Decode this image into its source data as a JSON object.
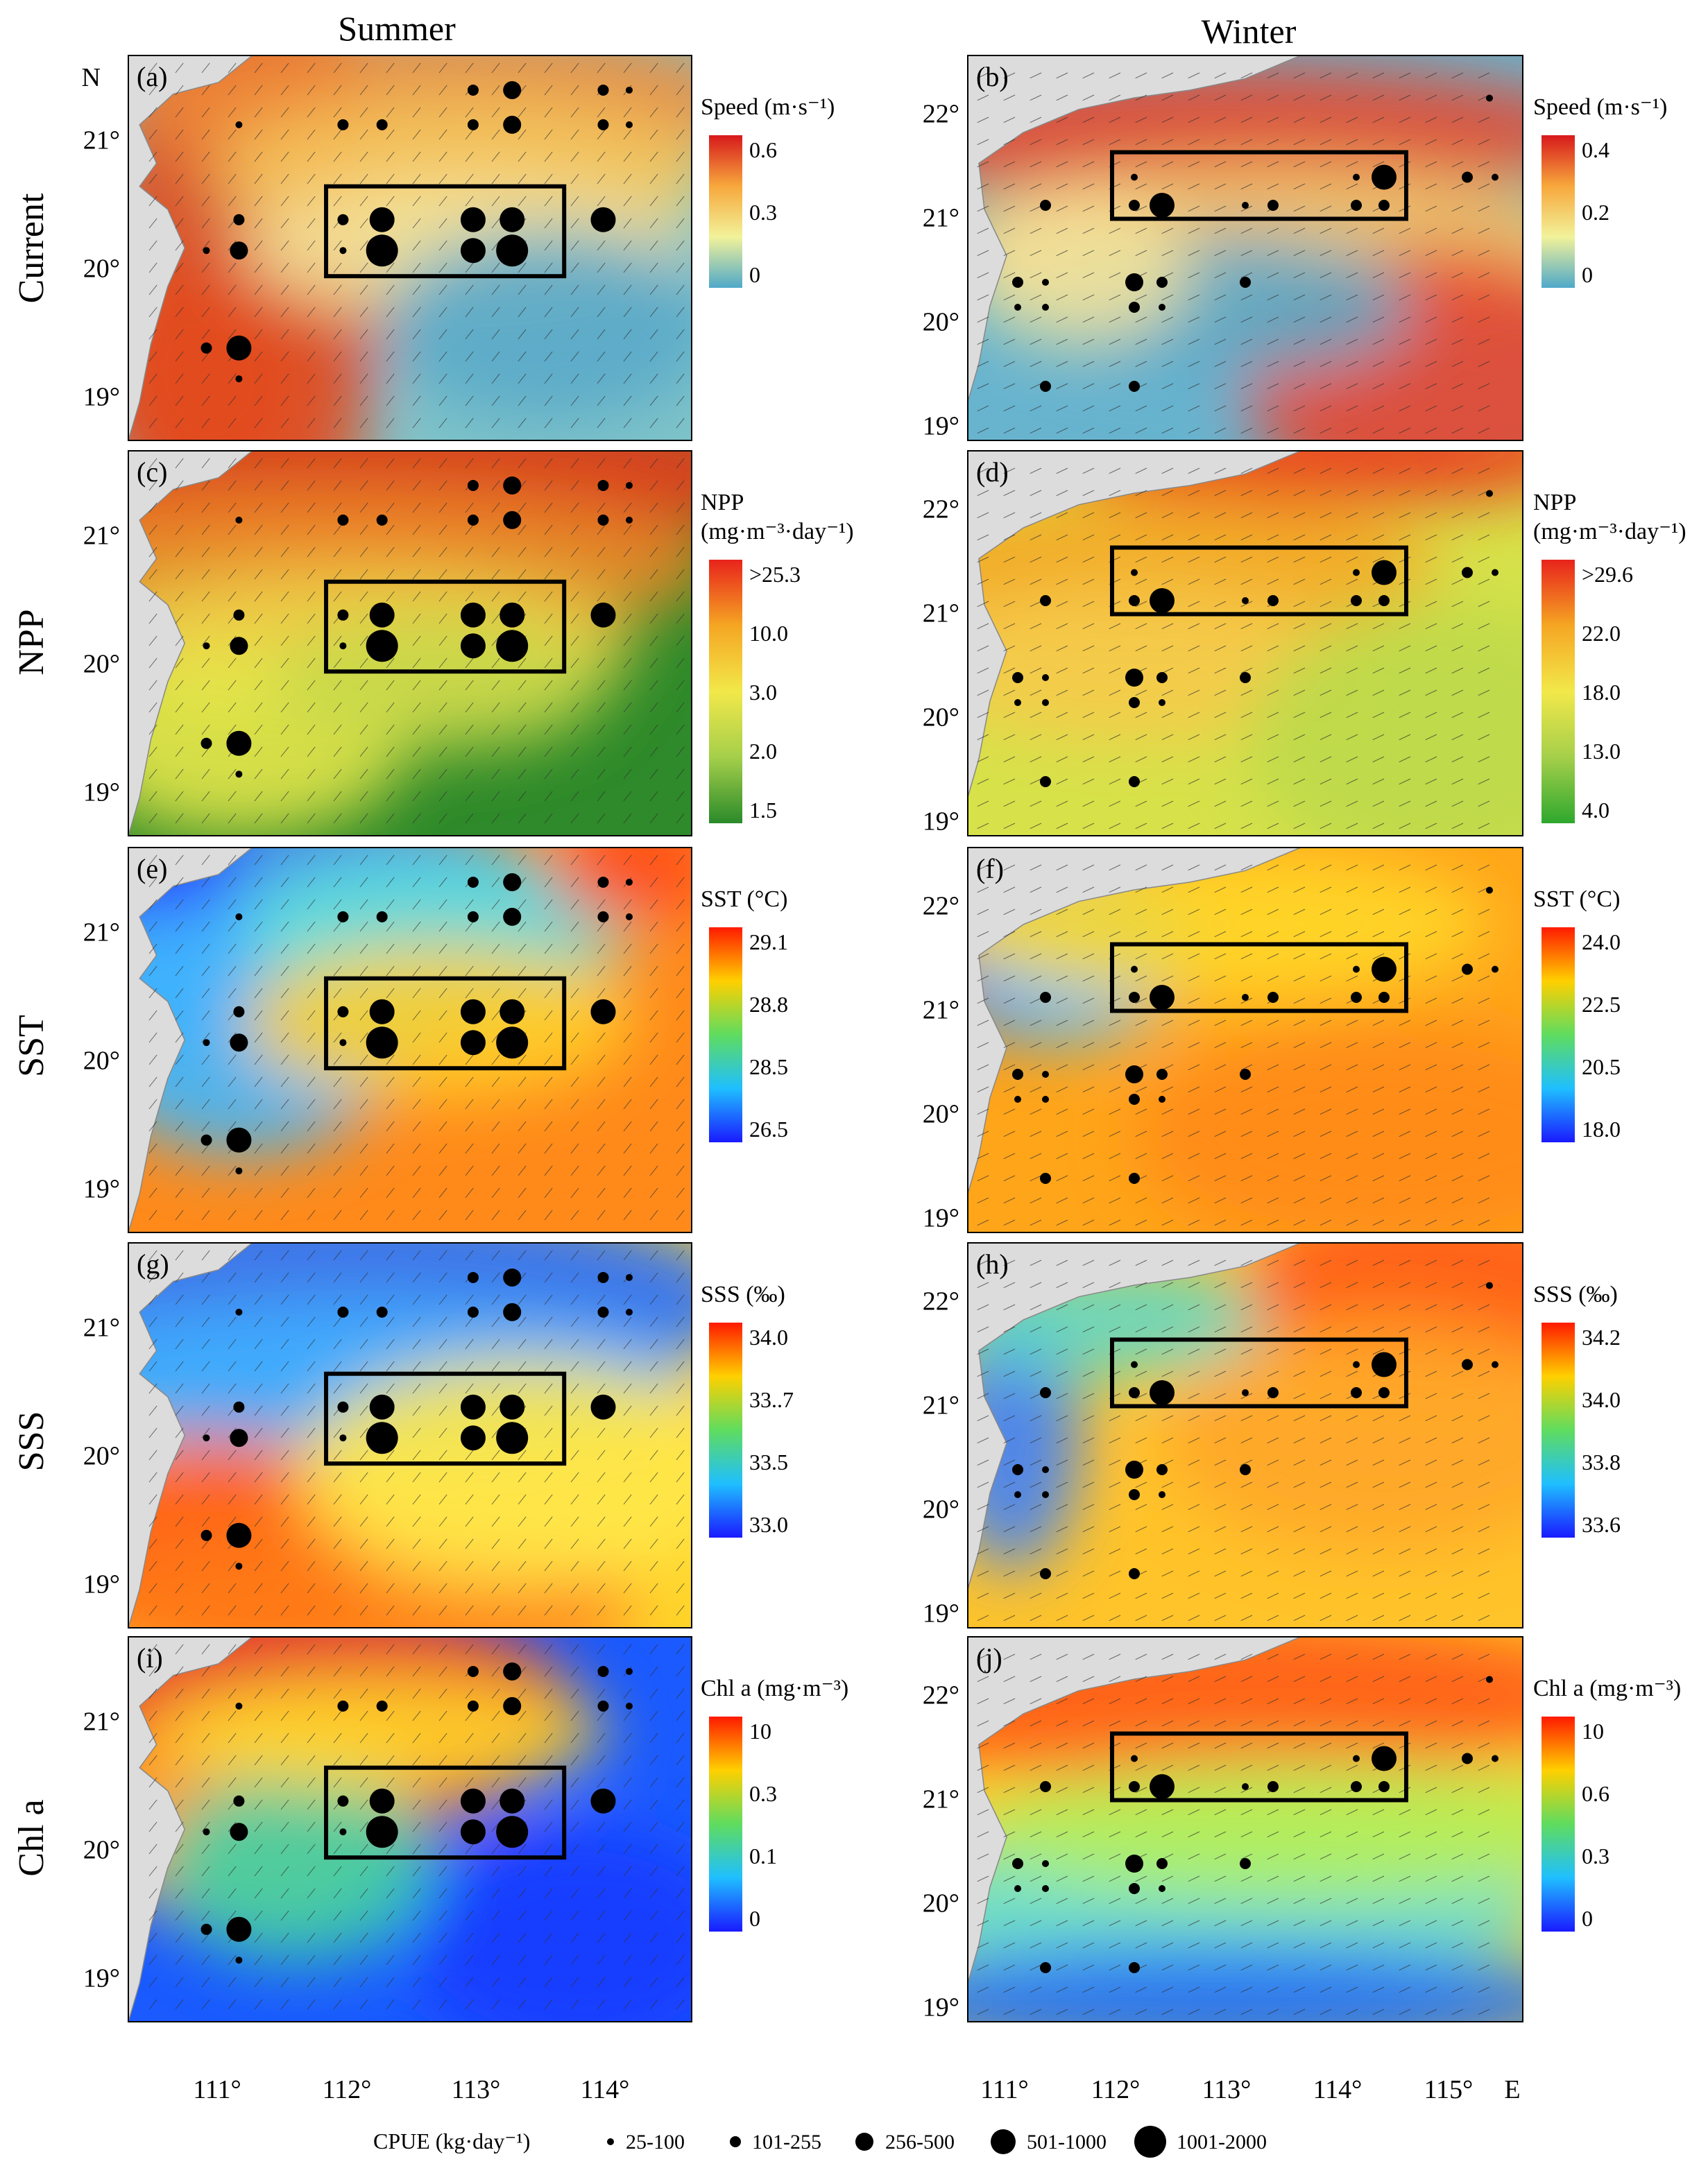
{
  "columns": [
    "Summer",
    "Winter"
  ],
  "rows": [
    "Current",
    "NPP",
    "SST",
    "SSS",
    "Chl a"
  ],
  "summer_axis": {
    "lat_labels": [
      "21°",
      "20°",
      "19°"
    ],
    "lon_labels": [
      "111°",
      "112°",
      "113°",
      "114°"
    ],
    "north_label": "N"
  },
  "winter_axis": {
    "lat_labels": [
      "22°",
      "21°",
      "20°",
      "19°"
    ],
    "lon_labels": [
      "111°",
      "112°",
      "113°",
      "114°",
      "115°"
    ],
    "east_label": "E"
  },
  "panels": [
    {
      "id": "a",
      "col": 0,
      "row": 0,
      "type": "current"
    },
    {
      "id": "b",
      "col": 1,
      "row": 0,
      "type": "current"
    },
    {
      "id": "c",
      "col": 0,
      "row": 1,
      "type": "npp"
    },
    {
      "id": "d",
      "col": 1,
      "row": 1,
      "type": "npp"
    },
    {
      "id": "e",
      "col": 0,
      "row": 2,
      "type": "sst"
    },
    {
      "id": "f",
      "col": 1,
      "row": 2,
      "type": "sst"
    },
    {
      "id": "g",
      "col": 0,
      "row": 3,
      "type": "sss"
    },
    {
      "id": "h",
      "col": 1,
      "row": 3,
      "type": "sss"
    },
    {
      "id": "i",
      "col": 0,
      "row": 4,
      "type": "chl"
    },
    {
      "id": "j",
      "col": 1,
      "row": 4,
      "type": "chl"
    }
  ],
  "legends": [
    {
      "panel": "a",
      "title": "Speed (m·s⁻¹)",
      "ticks": [
        "0.6",
        "0.3",
        "0"
      ],
      "colors": [
        "#d7191c",
        "#f7a83c",
        "#f2f29a",
        "#4fa9c9"
      ]
    },
    {
      "panel": "b",
      "title": "Speed (m·s⁻¹)",
      "ticks": [
        "0.4",
        "0.2",
        "0"
      ],
      "colors": [
        "#d7191c",
        "#f7a83c",
        "#f2f29a",
        "#4fa9c9"
      ]
    },
    {
      "panel": "c",
      "title": "NPP",
      "title2": "(mg·m⁻³·day⁻¹)",
      "ticks": [
        ">25.3",
        "10.0",
        "3.0",
        "2.0",
        "1.5"
      ],
      "colors": [
        "#e8231c",
        "#f5a623",
        "#f2e84a",
        "#a5cf4a",
        "#2a8a2a"
      ]
    },
    {
      "panel": "d",
      "title": "NPP",
      "title2": "(mg·m⁻³·day⁻¹)",
      "ticks": [
        ">29.6",
        "22.0",
        "18.0",
        "13.0",
        "4.0"
      ],
      "colors": [
        "#e8231c",
        "#f5a623",
        "#f2e84a",
        "#a5cf4a",
        "#2ea82e"
      ]
    },
    {
      "panel": "e",
      "title": "SST (°C)",
      "ticks": [
        "29.1",
        "28.8",
        "28.5",
        "26.5"
      ],
      "colors": [
        "#ff1a00",
        "#ffd000",
        "#5fdc5f",
        "#1fbfff",
        "#1a1aff"
      ]
    },
    {
      "panel": "f",
      "title": "SST (°C)",
      "ticks": [
        "24.0",
        "22.5",
        "20.5",
        "18.0"
      ],
      "colors": [
        "#ff1a00",
        "#ffd000",
        "#5fdc5f",
        "#1fbfff",
        "#1a1aff"
      ]
    },
    {
      "panel": "g",
      "title": "SSS (‰)",
      "ticks": [
        "34.0",
        "33..7",
        "33.5",
        "33.0"
      ],
      "colors": [
        "#ff1a00",
        "#ffd000",
        "#5fdc5f",
        "#1fbfff",
        "#1a1aff"
      ]
    },
    {
      "panel": "h",
      "title": "SSS (‰)",
      "ticks": [
        "34.2",
        "34.0",
        "33.8",
        "33.6"
      ],
      "colors": [
        "#ff1a00",
        "#ffd000",
        "#5fdc5f",
        "#1fbfff",
        "#1a1aff"
      ]
    },
    {
      "panel": "i",
      "title": "Chl a (mg·m⁻³)",
      "ticks": [
        "10",
        "0.3",
        "0.1",
        "0"
      ],
      "colors": [
        "#ff1a00",
        "#ffd000",
        "#5fdc5f",
        "#1fbfff",
        "#1a1aff"
      ]
    },
    {
      "panel": "j",
      "title": "Chl a (mg·m⁻³)",
      "ticks": [
        "10",
        "0.6",
        "0.3",
        "0"
      ],
      "colors": [
        "#ff1a00",
        "#ffd000",
        "#5fdc5f",
        "#1fbfff",
        "#1a1aff"
      ]
    }
  ],
  "cpue_legend": {
    "title": "CPUE (kg·day⁻¹)",
    "classes": [
      "25-100",
      "101-255",
      "256-500",
      "501-1000",
      "1001-2000"
    ]
  },
  "summer_stations": [
    {
      "lon": 111.3,
      "lat": 21.11,
      "cls": 1
    },
    {
      "lon": 112.1,
      "lat": 21.11,
      "cls": 2
    },
    {
      "lon": 112.4,
      "lat": 21.11,
      "cls": 2
    },
    {
      "lon": 113.1,
      "lat": 21.11,
      "cls": 2
    },
    {
      "lon": 113.4,
      "lat": 21.11,
      "cls": 3
    },
    {
      "lon": 114.1,
      "lat": 21.11,
      "cls": 2
    },
    {
      "lon": 114.3,
      "lat": 21.11,
      "cls": 1
    },
    {
      "lon": 113.1,
      "lat": 21.38,
      "cls": 2
    },
    {
      "lon": 113.4,
      "lat": 21.38,
      "cls": 3
    },
    {
      "lon": 114.1,
      "lat": 21.38,
      "cls": 2
    },
    {
      "lon": 114.3,
      "lat": 21.38,
      "cls": 1
    },
    {
      "lon": 112.1,
      "lat": 20.37,
      "cls": 2
    },
    {
      "lon": 112.4,
      "lat": 20.37,
      "cls": 4
    },
    {
      "lon": 113.1,
      "lat": 20.37,
      "cls": 4
    },
    {
      "lon": 113.4,
      "lat": 20.37,
      "cls": 4
    },
    {
      "lon": 114.1,
      "lat": 20.37,
      "cls": 4
    },
    {
      "lon": 112.1,
      "lat": 20.13,
      "cls": 1
    },
    {
      "lon": 112.4,
      "lat": 20.13,
      "cls": 5
    },
    {
      "lon": 113.1,
      "lat": 20.13,
      "cls": 4
    },
    {
      "lon": 113.4,
      "lat": 20.13,
      "cls": 5
    },
    {
      "lon": 111.3,
      "lat": 20.37,
      "cls": 2
    },
    {
      "lon": 111.3,
      "lat": 20.13,
      "cls": 3
    },
    {
      "lon": 111.05,
      "lat": 20.13,
      "cls": 1
    },
    {
      "lon": 111.05,
      "lat": 19.37,
      "cls": 2
    },
    {
      "lon": 111.3,
      "lat": 19.37,
      "cls": 4
    },
    {
      "lon": 111.3,
      "lat": 19.13,
      "cls": 1
    }
  ],
  "winter_stations": [
    {
      "lon": 115.3,
      "lat": 22.14,
      "cls": 1
    },
    {
      "lon": 112.1,
      "lat": 21.38,
      "cls": 1
    },
    {
      "lon": 114.1,
      "lat": 21.38,
      "cls": 1
    },
    {
      "lon": 114.35,
      "lat": 21.38,
      "cls": 4
    },
    {
      "lon": 115.1,
      "lat": 21.38,
      "cls": 2
    },
    {
      "lon": 115.35,
      "lat": 21.38,
      "cls": 1
    },
    {
      "lon": 111.3,
      "lat": 21.11,
      "cls": 2
    },
    {
      "lon": 112.1,
      "lat": 21.11,
      "cls": 2
    },
    {
      "lon": 112.35,
      "lat": 21.11,
      "cls": 4
    },
    {
      "lon": 113.1,
      "lat": 21.11,
      "cls": 1
    },
    {
      "lon": 113.35,
      "lat": 21.11,
      "cls": 2
    },
    {
      "lon": 114.1,
      "lat": 21.11,
      "cls": 2
    },
    {
      "lon": 114.35,
      "lat": 21.11,
      "cls": 2
    },
    {
      "lon": 111.05,
      "lat": 20.37,
      "cls": 2
    },
    {
      "lon": 111.3,
      "lat": 20.37,
      "cls": 1
    },
    {
      "lon": 112.1,
      "lat": 20.37,
      "cls": 3
    },
    {
      "lon": 112.35,
      "lat": 20.37,
      "cls": 2
    },
    {
      "lon": 113.1,
      "lat": 20.37,
      "cls": 2
    },
    {
      "lon": 111.05,
      "lat": 20.13,
      "cls": 1
    },
    {
      "lon": 111.3,
      "lat": 20.13,
      "cls": 1
    },
    {
      "lon": 112.1,
      "lat": 20.13,
      "cls": 2
    },
    {
      "lon": 112.35,
      "lat": 20.13,
      "cls": 1
    },
    {
      "lon": 111.3,
      "lat": 19.37,
      "cls": 2
    },
    {
      "lon": 112.1,
      "lat": 19.37,
      "cls": 2
    }
  ],
  "summer_box": {
    "lon": [
      111.97,
      113.8
    ],
    "lat": [
      19.93,
      20.63
    ]
  },
  "winter_box": {
    "lon": [
      111.9,
      114.55
    ],
    "lat": [
      20.98,
      21.62
    ]
  }
}
